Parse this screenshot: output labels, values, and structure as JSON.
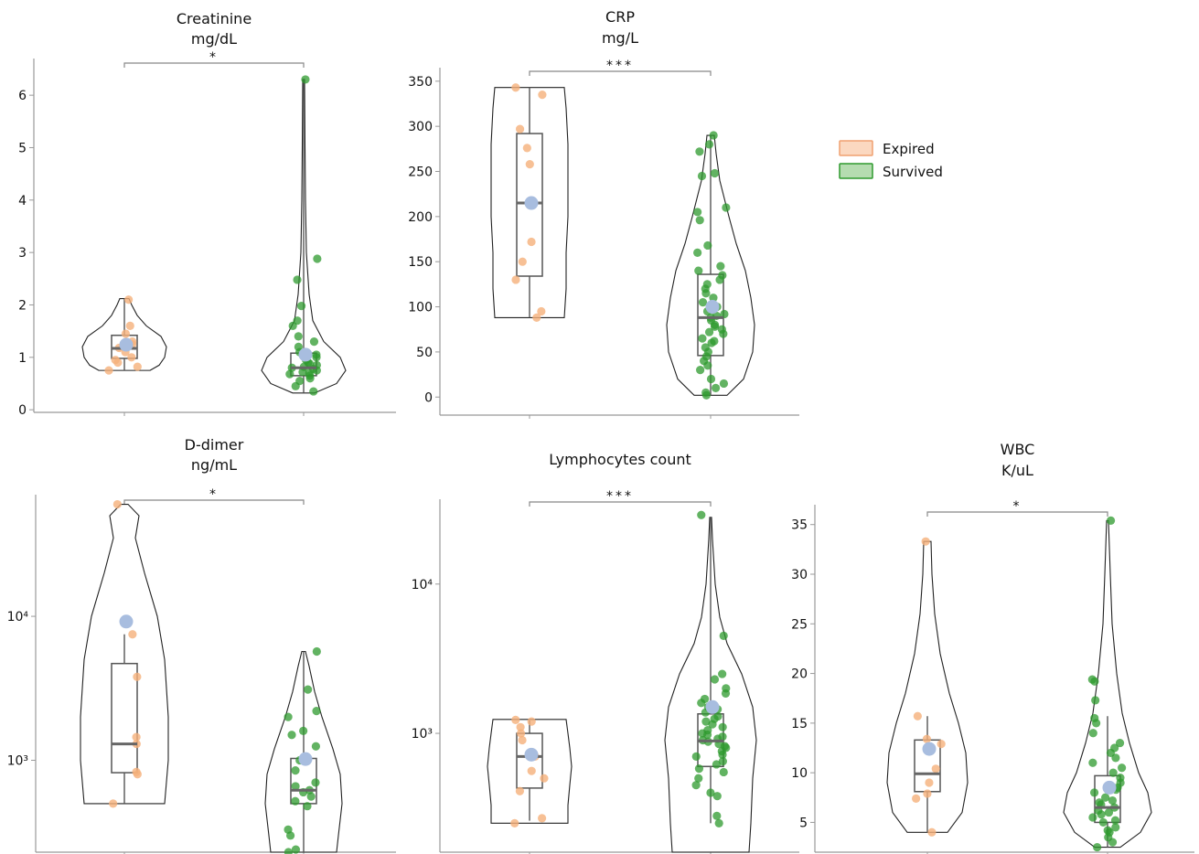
{
  "legend": {
    "entries": [
      {
        "label": "Expired",
        "fill": "#fbd8c0",
        "stroke": "#f0a070"
      },
      {
        "label": "Survived",
        "fill": "#b5dcb0",
        "stroke": "#2e9a2e"
      }
    ]
  },
  "colors": {
    "expired_point": "#f5b07a",
    "survived_point": "#2e9a2e",
    "mean_point": "#a8bddf",
    "violin_stroke": "#222222",
    "box_stroke": "#555555",
    "axis": "#999999"
  },
  "chart_data": [
    {
      "type": "violin",
      "title_lines": [
        "Creatinine",
        "mg/dL"
      ],
      "scale": "linear",
      "ylim": [
        -0.05,
        6.7
      ],
      "yticks": [
        0,
        1,
        2,
        3,
        4,
        5,
        6
      ],
      "significance": "*",
      "groups": [
        {
          "name": "Expired",
          "box": {
            "q1": 0.98,
            "median": 1.17,
            "q3": 1.42,
            "whisker_low": 0.75,
            "whisker_high": 2.12
          },
          "mean": 1.24,
          "violin": {
            "min": 0.75,
            "max": 2.12,
            "profile": [
              [
                0.75,
                28
              ],
              [
                0.85,
                38
              ],
              [
                1.0,
                44
              ],
              [
                1.2,
                46
              ],
              [
                1.4,
                40
              ],
              [
                1.6,
                24
              ],
              [
                1.8,
                14
              ],
              [
                2.0,
                8
              ],
              [
                2.12,
                5
              ]
            ]
          },
          "points": [
            0.75,
            0.82,
            0.9,
            0.95,
            1.0,
            1.1,
            1.18,
            1.25,
            1.3,
            1.45,
            1.6,
            2.1
          ]
        },
        {
          "name": "Survived",
          "box": {
            "q1": 0.65,
            "median": 0.8,
            "q3": 1.08,
            "whisker_low": 0.32,
            "whisker_high": 6.3
          },
          "mean": 1.05,
          "violin": {
            "min": 0.32,
            "max": 6.3,
            "profile": [
              [
                0.32,
                12
              ],
              [
                0.5,
                36
              ],
              [
                0.75,
                46
              ],
              [
                1.0,
                40
              ],
              [
                1.3,
                22
              ],
              [
                1.7,
                10
              ],
              [
                2.2,
                6
              ],
              [
                3.0,
                3
              ],
              [
                4.0,
                2
              ],
              [
                5.0,
                1.5
              ],
              [
                6.3,
                1
              ]
            ]
          },
          "points": [
            0.35,
            0.45,
            0.55,
            0.6,
            0.65,
            0.68,
            0.7,
            0.72,
            0.75,
            0.78,
            0.8,
            0.82,
            0.85,
            0.88,
            0.9,
            0.95,
            1.0,
            1.05,
            1.1,
            1.2,
            1.3,
            1.4,
            1.6,
            1.7,
            1.98,
            2.48,
            2.88,
            6.3
          ]
        }
      ]
    },
    {
      "type": "violin",
      "title_lines": [
        "CRP",
        "mg/L"
      ],
      "scale": "linear",
      "ylim": [
        -20,
        365
      ],
      "yticks": [
        0,
        50,
        100,
        150,
        200,
        250,
        300,
        350
      ],
      "significance": "***",
      "groups": [
        {
          "name": "Expired",
          "box": {
            "q1": 134,
            "median": 215,
            "q3": 292,
            "whisker_low": 88,
            "whisker_high": 343
          },
          "mean": 215,
          "violin": {
            "min": 88,
            "max": 343,
            "profile": [
              [
                88,
                38
              ],
              [
                120,
                40
              ],
              [
                160,
                40
              ],
              [
                200,
                42
              ],
              [
                240,
                42
              ],
              [
                280,
                42
              ],
              [
                320,
                40
              ],
              [
                343,
                38
              ]
            ]
          },
          "points": [
            88,
            95,
            130,
            150,
            172,
            258,
            276,
            297,
            335,
            343
          ]
        },
        {
          "name": "Survived",
          "box": {
            "q1": 46,
            "median": 88,
            "q3": 136,
            "whisker_low": 2,
            "whisker_high": 290
          },
          "mean": 100,
          "violin": {
            "min": 2,
            "max": 290,
            "profile": [
              [
                2,
                18
              ],
              [
                20,
                36
              ],
              [
                50,
                46
              ],
              [
                80,
                48
              ],
              [
                110,
                44
              ],
              [
                140,
                38
              ],
              [
                170,
                28
              ],
              [
                200,
                20
              ],
              [
                240,
                10
              ],
              [
                270,
                6
              ],
              [
                290,
                4
              ]
            ]
          },
          "points": [
            2,
            5,
            10,
            15,
            20,
            30,
            35,
            40,
            45,
            50,
            55,
            60,
            62,
            65,
            70,
            72,
            75,
            78,
            80,
            85,
            88,
            90,
            92,
            95,
            100,
            105,
            110,
            115,
            120,
            125,
            130,
            135,
            140,
            145,
            160,
            168,
            196,
            205,
            210,
            245,
            248,
            272,
            280,
            290
          ]
        }
      ]
    },
    {
      "type": "violin",
      "title_lines": [
        "D-dimer",
        "ng/mL"
      ],
      "scale": "log",
      "ylim": [
        230,
        70000
      ],
      "yticks": [
        1000,
        10000
      ],
      "ytick_labels": [
        "10³",
        "10⁴"
      ],
      "significance": "*",
      "groups": [
        {
          "name": "Expired",
          "box": {
            "q1": 820,
            "median": 1300,
            "q3": 4700,
            "whisker_low": 500,
            "whisker_high": 7500
          },
          "mean": 9200,
          "violin": {
            "min": 500,
            "max": 60000,
            "profile": [
              [
                500,
                44
              ],
              [
                1000,
                48
              ],
              [
                2000,
                48
              ],
              [
                5000,
                44
              ],
              [
                10000,
                36
              ],
              [
                20000,
                22
              ],
              [
                35000,
                12
              ],
              [
                50000,
                16
              ],
              [
                60000,
                4
              ]
            ]
          },
          "points": [
            500,
            800,
            830,
            1300,
            1450,
            3800,
            7500,
            60000
          ]
        },
        {
          "name": "Survived",
          "box": {
            "q1": 500,
            "median": 620,
            "q3": 1030,
            "whisker_low": 230,
            "whisker_high": 5700
          },
          "mean": 1020,
          "violin": {
            "min": 230,
            "max": 5700,
            "profile": [
              [
                230,
                36
              ],
              [
                300,
                38
              ],
              [
                500,
                42
              ],
              [
                800,
                40
              ],
              [
                1200,
                32
              ],
              [
                2000,
                20
              ],
              [
                3000,
                12
              ],
              [
                4500,
                6
              ],
              [
                5700,
                2
              ]
            ]
          },
          "points": [
            230,
            240,
            300,
            330,
            480,
            520,
            560,
            600,
            620,
            660,
            700,
            850,
            1000,
            1250,
            1500,
            1600,
            2000,
            2200,
            3100,
            5700
          ]
        }
      ]
    },
    {
      "type": "violin",
      "title_lines": [
        "Lymphocytes count"
      ],
      "scale": "log",
      "ylim": [
        160,
        37000
      ],
      "yticks": [
        1000,
        10000
      ],
      "ytick_labels": [
        "10³",
        "10⁴"
      ],
      "significance": "***",
      "groups": [
        {
          "name": "Expired",
          "box": {
            "q1": 430,
            "median": 700,
            "q3": 1000,
            "whisker_low": 260,
            "whisker_high": 1220
          },
          "mean": 720,
          "violin": {
            "min": 250,
            "max": 1240,
            "profile": [
              [
                250,
                42
              ],
              [
                330,
                42
              ],
              [
                450,
                44
              ],
              [
                600,
                46
              ],
              [
                800,
                44
              ],
              [
                1000,
                42
              ],
              [
                1240,
                40
              ]
            ]
          },
          "points": [
            250,
            270,
            410,
            500,
            560,
            700,
            900,
            1000,
            1100,
            1200,
            1230
          ]
        },
        {
          "name": "Survived",
          "box": {
            "q1": 600,
            "median": 890,
            "q3": 1350,
            "whisker_low": 250,
            "whisker_high": 28000
          },
          "mean": 1500,
          "violin": {
            "min": 160,
            "max": 28000,
            "profile": [
              [
                160,
                42
              ],
              [
                250,
                44
              ],
              [
                500,
                46
              ],
              [
                900,
                50
              ],
              [
                1500,
                46
              ],
              [
                2500,
                34
              ],
              [
                4000,
                18
              ],
              [
                6000,
                10
              ],
              [
                10000,
                5
              ],
              [
                20000,
                2
              ],
              [
                28000,
                1
              ]
            ]
          },
          "points": [
            250,
            280,
            380,
            400,
            450,
            500,
            550,
            580,
            620,
            650,
            700,
            720,
            760,
            800,
            820,
            850,
            880,
            900,
            920,
            950,
            980,
            1000,
            1050,
            1100,
            1150,
            1200,
            1250,
            1300,
            1380,
            1450,
            1500,
            1600,
            1700,
            1850,
            2000,
            2300,
            2500,
            4500,
            29000
          ]
        }
      ]
    },
    {
      "type": "violin",
      "title_lines": [
        "WBC",
        "K/uL"
      ],
      "scale": "linear",
      "ylim": [
        2,
        37
      ],
      "yticks": [
        5,
        10,
        15,
        20,
        25,
        30,
        35
      ],
      "significance": "*",
      "groups": [
        {
          "name": "Expired",
          "box": {
            "q1": 8.1,
            "median": 9.9,
            "q3": 13.3,
            "whisker_low": 4.0,
            "whisker_high": 15.7
          },
          "mean": 12.4,
          "violin": {
            "min": 4.0,
            "max": 33.3,
            "profile": [
              [
                4,
                22
              ],
              [
                6,
                38
              ],
              [
                9,
                44
              ],
              [
                12,
                42
              ],
              [
                15,
                34
              ],
              [
                18,
                24
              ],
              [
                22,
                14
              ],
              [
                26,
                8
              ],
              [
                30,
                5
              ],
              [
                33.3,
                4
              ]
            ]
          },
          "points": [
            4.0,
            7.4,
            7.9,
            9.0,
            10.4,
            12.9,
            13.4,
            15.7,
            33.3
          ]
        },
        {
          "name": "Survived",
          "box": {
            "q1": 5.0,
            "median": 6.5,
            "q3": 9.7,
            "whisker_low": 2.5,
            "whisker_high": 15.7
          },
          "mean": 8.5,
          "violin": {
            "min": 2.5,
            "max": 35.4,
            "profile": [
              [
                2.5,
                14
              ],
              [
                4,
                36
              ],
              [
                6,
                48
              ],
              [
                8,
                44
              ],
              [
                10,
                34
              ],
              [
                13,
                24
              ],
              [
                16,
                16
              ],
              [
                20,
                10
              ],
              [
                25,
                5
              ],
              [
                30,
                3
              ],
              [
                35.4,
                1
              ]
            ]
          },
          "points": [
            2.5,
            3.0,
            3.5,
            4.0,
            4.2,
            4.5,
            5.0,
            5.2,
            5.5,
            5.8,
            6.0,
            6.2,
            6.5,
            6.8,
            7.0,
            7.2,
            7.5,
            8.0,
            8.3,
            8.5,
            9.0,
            9.5,
            10.0,
            10.5,
            11.0,
            11.5,
            12.0,
            12.5,
            13.0,
            14.0,
            15.0,
            15.5,
            17.3,
            19.2,
            19.4,
            35.4
          ]
        }
      ]
    }
  ]
}
